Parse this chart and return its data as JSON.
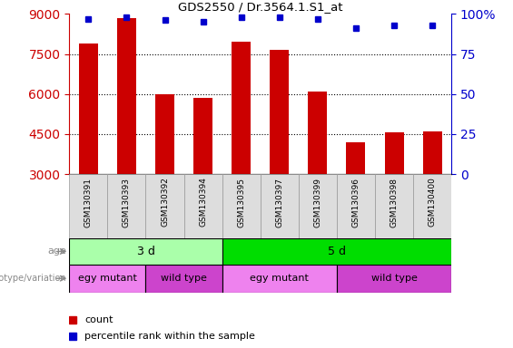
{
  "title": "GDS2550 / Dr.3564.1.S1_at",
  "samples": [
    "GSM130391",
    "GSM130393",
    "GSM130392",
    "GSM130394",
    "GSM130395",
    "GSM130397",
    "GSM130399",
    "GSM130396",
    "GSM130398",
    "GSM130400"
  ],
  "counts": [
    7900,
    8850,
    5980,
    5850,
    7950,
    7650,
    6100,
    4200,
    4550,
    4600
  ],
  "percentile_ranks": [
    97,
    98,
    96,
    95,
    98,
    98,
    97,
    91,
    93,
    93
  ],
  "ymin": 3000,
  "ymax": 9000,
  "yticks": [
    3000,
    4500,
    6000,
    7500,
    9000
  ],
  "right_yticks": [
    0,
    25,
    50,
    75,
    100
  ],
  "bar_color": "#CC0000",
  "dot_color": "#0000CC",
  "age_groups": [
    {
      "text": "3 d",
      "start": 0,
      "end": 4,
      "color": "#AAFFAA"
    },
    {
      "text": "5 d",
      "start": 4,
      "end": 10,
      "color": "#00DD00"
    }
  ],
  "genotype_groups": [
    {
      "text": "egy mutant",
      "start": 0,
      "end": 2,
      "color": "#EE82EE"
    },
    {
      "text": "wild type",
      "start": 2,
      "end": 4,
      "color": "#CC44CC"
    },
    {
      "text": "egy mutant",
      "start": 4,
      "end": 7,
      "color": "#EE82EE"
    },
    {
      "text": "wild type",
      "start": 7,
      "end": 10,
      "color": "#CC44CC"
    }
  ],
  "age_label": "age",
  "genotype_label": "genotype/variation",
  "legend_count_color": "#CC0000",
  "legend_pct_color": "#0000CC",
  "legend_count_label": "count",
  "legend_pct_label": "percentile rank within the sample",
  "left_ytick_color": "#CC0000",
  "right_ytick_color": "#0000CC",
  "label_color": "#888888",
  "xticklabel_bg": "#DDDDDD"
}
